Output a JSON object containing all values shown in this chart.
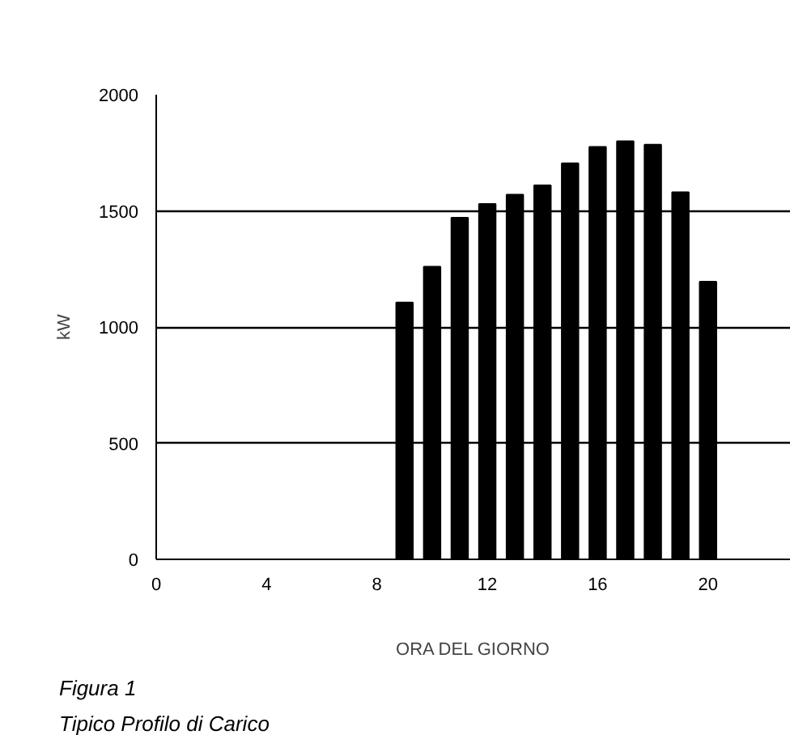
{
  "chart_data": {
    "type": "bar",
    "xlabel": "ORA DEL GIORNO",
    "ylabel": "kW",
    "x": [
      9,
      10,
      11,
      12,
      13,
      14,
      15,
      16,
      17,
      18,
      19,
      20
    ],
    "values": [
      1105,
      1260,
      1470,
      1530,
      1570,
      1610,
      1705,
      1775,
      1800,
      1785,
      1580,
      1195
    ],
    "color": "#000000",
    "xlim": [
      0,
      23
    ],
    "xticks": [
      0,
      4,
      8,
      12,
      16,
      20
    ],
    "ylim": [
      0,
      2000
    ],
    "yticks": [
      0,
      500,
      1000,
      1500,
      2000
    ],
    "grid": "y",
    "annotations": [
      "Figura 1",
      "Tipico Profilo di Carico"
    ]
  }
}
